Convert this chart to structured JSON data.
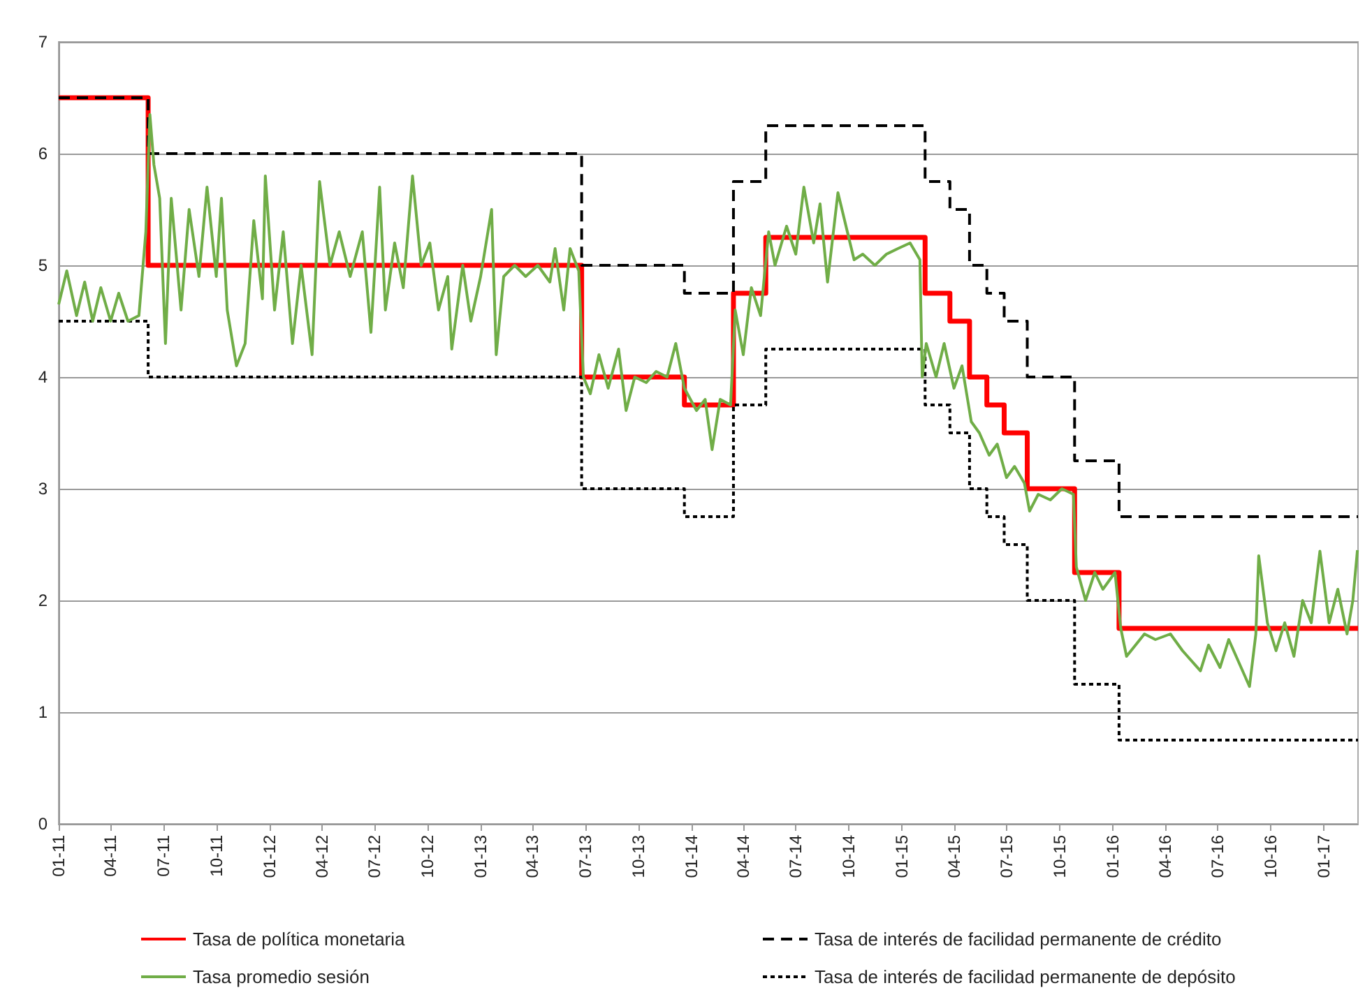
{
  "chart_data": {
    "type": "line",
    "legend": "bottom",
    "grid": "y",
    "marker": "none",
    "ylim": [
      0,
      7
    ],
    "yticks": [
      0,
      1,
      2,
      3,
      4,
      5,
      6,
      7
    ],
    "xlim": [
      "2011-01-01",
      "2017-03-01"
    ],
    "xticks": [
      {
        "value": "2011-01-01",
        "label": "01-11"
      },
      {
        "value": "2011-04-01",
        "label": "04-11"
      },
      {
        "value": "2011-07-01",
        "label": "07-11"
      },
      {
        "value": "2011-10-01",
        "label": "10-11"
      },
      {
        "value": "2012-01-01",
        "label": "01-12"
      },
      {
        "value": "2012-04-01",
        "label": "04-12"
      },
      {
        "value": "2012-07-01",
        "label": "07-12"
      },
      {
        "value": "2012-10-01",
        "label": "10-12"
      },
      {
        "value": "2013-01-01",
        "label": "01-13"
      },
      {
        "value": "2013-04-01",
        "label": "04-13"
      },
      {
        "value": "2013-07-01",
        "label": "07-13"
      },
      {
        "value": "2013-10-01",
        "label": "10-13"
      },
      {
        "value": "2014-01-01",
        "label": "01-14"
      },
      {
        "value": "2014-04-01",
        "label": "04-14"
      },
      {
        "value": "2014-07-01",
        "label": "07-14"
      },
      {
        "value": "2014-10-01",
        "label": "10-14"
      },
      {
        "value": "2015-01-01",
        "label": "01-15"
      },
      {
        "value": "2015-04-01",
        "label": "04-15"
      },
      {
        "value": "2015-07-01",
        "label": "07-15"
      },
      {
        "value": "2015-10-01",
        "label": "10-15"
      },
      {
        "value": "2016-01-01",
        "label": "01-16"
      },
      {
        "value": "2016-04-01",
        "label": "04-16"
      },
      {
        "value": "2016-07-01",
        "label": "07-16"
      },
      {
        "value": "2016-10-01",
        "label": "10-16"
      },
      {
        "value": "2017-01-01",
        "label": "01-17"
      }
    ],
    "series": [
      {
        "name": "Tasa promedio sesión",
        "color": "#70ad47",
        "line_style": "solid",
        "x": [
          "2011-01-01",
          "2011-01-15",
          "2011-02-01",
          "2011-02-15",
          "2011-03-01",
          "2011-03-15",
          "2011-04-01",
          "2011-04-15",
          "2011-05-01",
          "2011-05-20",
          "2011-06-01",
          "2011-06-08",
          "2011-06-15",
          "2011-06-25",
          "2011-07-05",
          "2011-07-15",
          "2011-08-01",
          "2011-08-15",
          "2011-09-01",
          "2011-09-15",
          "2011-10-01",
          "2011-10-10",
          "2011-10-20",
          "2011-11-05",
          "2011-11-20",
          "2011-12-05",
          "2011-12-20",
          "2011-12-25",
          "2012-01-10",
          "2012-01-25",
          "2012-02-10",
          "2012-02-25",
          "2012-03-15",
          "2012-03-28",
          "2012-04-15",
          "2012-05-01",
          "2012-05-20",
          "2012-06-10",
          "2012-06-25",
          "2012-07-10",
          "2012-07-20",
          "2012-08-05",
          "2012-08-20",
          "2012-09-05",
          "2012-09-20",
          "2012-10-05",
          "2012-10-20",
          "2012-11-05",
          "2012-11-12",
          "2012-12-01",
          "2012-12-15",
          "2013-01-01",
          "2013-01-20",
          "2013-01-28",
          "2013-02-10",
          "2013-03-01",
          "2013-03-20",
          "2013-04-10",
          "2013-05-01",
          "2013-05-10",
          "2013-05-25",
          "2013-06-05",
          "2013-06-20",
          "2013-06-28",
          "2013-07-10",
          "2013-07-25",
          "2013-08-10",
          "2013-08-28",
          "2013-09-10",
          "2013-09-25",
          "2013-10-15",
          "2013-11-01",
          "2013-11-20",
          "2013-12-05",
          "2013-12-20",
          "2014-01-10",
          "2014-01-25",
          "2014-02-06",
          "2014-02-20",
          "2014-03-10",
          "2014-03-18",
          "2014-04-01",
          "2014-04-15",
          "2014-05-01",
          "2014-05-15",
          "2014-05-26",
          "2014-06-15",
          "2014-07-01",
          "2014-07-15",
          "2014-08-01",
          "2014-08-12",
          "2014-08-25",
          "2014-09-12",
          "2014-10-10",
          "2014-10-25",
          "2014-11-15",
          "2014-12-05",
          "2014-12-25",
          "2015-01-15",
          "2015-02-01",
          "2015-02-05",
          "2015-02-12",
          "2015-03-01",
          "2015-03-15",
          "2015-04-01",
          "2015-04-15",
          "2015-05-01",
          "2015-05-15",
          "2015-06-01",
          "2015-06-15",
          "2015-07-01",
          "2015-07-15",
          "2015-08-01",
          "2015-08-10",
          "2015-08-25",
          "2015-09-15",
          "2015-10-05",
          "2015-10-25",
          "2015-10-30",
          "2015-11-15",
          "2015-12-01",
          "2015-12-15",
          "2016-01-05",
          "2016-01-15",
          "2016-01-25",
          "2016-02-25",
          "2016-03-15",
          "2016-04-10",
          "2016-05-01",
          "2016-06-01",
          "2016-06-15",
          "2016-07-05",
          "2016-07-20",
          "2016-08-25",
          "2016-09-05",
          "2016-09-10",
          "2016-09-25",
          "2016-10-10",
          "2016-10-25",
          "2016-11-10",
          "2016-11-25",
          "2016-12-10",
          "2016-12-25",
          "2017-01-10",
          "2017-01-25",
          "2017-02-10",
          "2017-02-20",
          "2017-02-28"
        ],
        "values": [
          4.65,
          4.95,
          4.55,
          4.85,
          4.5,
          4.8,
          4.5,
          4.75,
          4.5,
          4.55,
          5.3,
          6.35,
          5.9,
          5.6,
          4.3,
          5.6,
          4.6,
          5.5,
          4.9,
          5.7,
          4.9,
          5.6,
          4.6,
          4.1,
          4.3,
          5.4,
          4.7,
          5.8,
          4.6,
          5.3,
          4.3,
          5.0,
          4.2,
          5.75,
          5.0,
          5.3,
          4.9,
          5.3,
          4.4,
          5.7,
          4.6,
          5.2,
          4.8,
          5.8,
          5.0,
          5.2,
          4.6,
          4.9,
          4.25,
          5.0,
          4.5,
          4.9,
          5.5,
          4.2,
          4.9,
          5.0,
          4.9,
          5.0,
          4.85,
          5.15,
          4.6,
          5.15,
          4.95,
          4.0,
          3.85,
          4.2,
          3.9,
          4.25,
          3.7,
          4.0,
          3.95,
          4.05,
          4.0,
          4.3,
          3.9,
          3.7,
          3.8,
          3.35,
          3.8,
          3.75,
          4.6,
          4.2,
          4.8,
          4.55,
          5.3,
          5.0,
          5.35,
          5.1,
          5.7,
          5.2,
          5.55,
          4.85,
          5.65,
          5.05,
          5.1,
          5.0,
          5.1,
          5.15,
          5.2,
          5.05,
          4.0,
          4.3,
          4.0,
          4.3,
          3.9,
          4.1,
          3.6,
          3.5,
          3.3,
          3.4,
          3.1,
          3.2,
          3.05,
          2.8,
          2.95,
          2.9,
          3.0,
          2.95,
          2.3,
          2.0,
          2.25,
          2.1,
          2.25,
          1.75,
          1.5,
          1.7,
          1.65,
          1.7,
          1.55,
          1.37,
          1.6,
          1.4,
          1.65,
          1.23,
          1.7,
          2.4,
          1.8,
          1.55,
          1.8,
          1.5,
          2.0,
          1.8,
          2.44,
          1.8,
          2.1,
          1.7,
          2.0,
          2.45
        ]
      },
      {
        "name": "Tasa de política monetaria",
        "type": "step",
        "color": "#ff0000",
        "line_style": "solid",
        "x": [
          "2011-01-01",
          "2011-06-05",
          "2013-06-25",
          "2013-12-20",
          "2014-03-15",
          "2014-05-10",
          "2015-02-10",
          "2015-03-25",
          "2015-04-28",
          "2015-05-28",
          "2015-06-27",
          "2015-08-06",
          "2015-10-27",
          "2016-01-12",
          "2017-03-01"
        ],
        "values": [
          6.5,
          5.0,
          4.0,
          3.75,
          4.75,
          5.25,
          4.75,
          4.5,
          4.0,
          3.75,
          3.5,
          3.0,
          2.25,
          1.75,
          1.75
        ]
      },
      {
        "name": "Tasa de interés de facilidad permanente de crédito",
        "type": "step",
        "color": "#000000",
        "line_style": "dashed",
        "x": [
          "2011-01-01",
          "2011-06-05",
          "2013-06-25",
          "2013-12-20",
          "2014-03-15",
          "2014-05-10",
          "2015-02-10",
          "2015-03-25",
          "2015-04-28",
          "2015-05-28",
          "2015-06-27",
          "2015-08-06",
          "2015-10-27",
          "2016-01-12",
          "2017-03-01"
        ],
        "values": [
          6.5,
          6.0,
          5.0,
          4.75,
          5.75,
          6.25,
          5.75,
          5.5,
          5.0,
          4.75,
          4.5,
          4.0,
          3.25,
          2.75,
          2.75
        ]
      },
      {
        "name": "Tasa de interés de facilidad permanente de depósito",
        "type": "step",
        "color": "#000000",
        "line_style": "dotted",
        "x": [
          "2011-01-01",
          "2011-06-05",
          "2013-06-25",
          "2013-12-20",
          "2014-03-15",
          "2014-05-10",
          "2015-02-10",
          "2015-03-25",
          "2015-04-28",
          "2015-05-28",
          "2015-06-27",
          "2015-08-06",
          "2015-10-27",
          "2016-01-12",
          "2017-03-01"
        ],
        "values": [
          4.5,
          4.0,
          3.0,
          2.75,
          3.75,
          4.25,
          3.75,
          3.5,
          3.0,
          2.75,
          2.5,
          2.0,
          1.25,
          0.75,
          0.75
        ]
      }
    ]
  }
}
